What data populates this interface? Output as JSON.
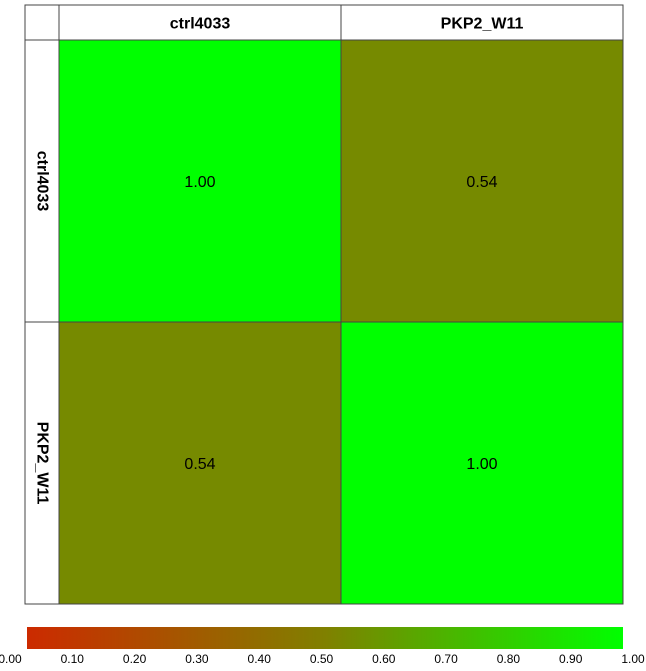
{
  "chart_data": {
    "type": "heatmap",
    "title": "",
    "xlabel": "",
    "ylabel": "",
    "columns": [
      "ctrl4033",
      "PKP2_W11"
    ],
    "rows": [
      "ctrl4033",
      "PKP2_W11"
    ],
    "values": [
      [
        1.0,
        0.54
      ],
      [
        0.54,
        1.0
      ]
    ],
    "value_labels": [
      [
        "1.00",
        "0.54"
      ],
      [
        "0.54",
        "1.00"
      ]
    ],
    "colorscale": {
      "min": 0,
      "max": 1,
      "colors": [
        "#cc2a00",
        "#808000",
        "#00ff00"
      ],
      "ticks": [
        "0.00",
        "0.10",
        "0.20",
        "0.30",
        "0.40",
        "0.50",
        "0.60",
        "0.70",
        "0.80",
        "0.90",
        "1.00"
      ]
    },
    "legend": "bottom"
  }
}
